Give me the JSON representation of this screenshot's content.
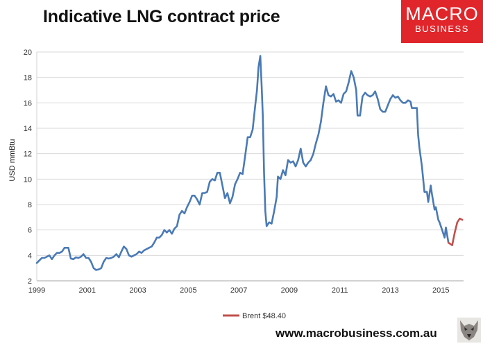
{
  "title": "Indicative LNG contract price",
  "logo": {
    "line1": "MACRO",
    "line2": "BUSINESS",
    "color": "#e1262b"
  },
  "footer": "www.macrobusiness.com.au",
  "chart_data": {
    "type": "line",
    "title": "Indicative LNG contract price",
    "xlabel": "",
    "ylabel": "USD mmBtu",
    "xlim": [
      1999,
      2015.9
    ],
    "ylim": [
      2,
      20
    ],
    "y_ticks": [
      2,
      4,
      6,
      8,
      10,
      12,
      14,
      16,
      18,
      20
    ],
    "x_ticks": [
      1999,
      2001,
      2003,
      2005,
      2007,
      2009,
      2011,
      2013,
      2015
    ],
    "legend_position": "bottom",
    "series": [
      {
        "name": "LNG contract price",
        "color": "#4a7ab5",
        "show_in_legend": false,
        "points": [
          [
            1999.0,
            3.4
          ],
          [
            1999.1,
            3.6
          ],
          [
            1999.2,
            3.8
          ],
          [
            1999.3,
            3.8
          ],
          [
            1999.4,
            3.9
          ],
          [
            1999.5,
            4.0
          ],
          [
            1999.6,
            3.7
          ],
          [
            1999.7,
            4.0
          ],
          [
            1999.8,
            4.2
          ],
          [
            1999.9,
            4.2
          ],
          [
            2000.0,
            4.3
          ],
          [
            2000.1,
            4.6
          ],
          [
            2000.25,
            4.6
          ],
          [
            2000.35,
            3.75
          ],
          [
            2000.45,
            3.7
          ],
          [
            2000.55,
            3.85
          ],
          [
            2000.65,
            3.8
          ],
          [
            2000.75,
            3.9
          ],
          [
            2000.85,
            4.1
          ],
          [
            2000.95,
            3.8
          ],
          [
            2001.05,
            3.8
          ],
          [
            2001.15,
            3.5
          ],
          [
            2001.25,
            3.0
          ],
          [
            2001.35,
            2.85
          ],
          [
            2001.45,
            2.9
          ],
          [
            2001.55,
            3.0
          ],
          [
            2001.65,
            3.5
          ],
          [
            2001.75,
            3.8
          ],
          [
            2001.85,
            3.75
          ],
          [
            2001.95,
            3.8
          ],
          [
            2002.05,
            3.9
          ],
          [
            2002.15,
            4.1
          ],
          [
            2002.25,
            3.85
          ],
          [
            2002.35,
            4.3
          ],
          [
            2002.45,
            4.7
          ],
          [
            2002.55,
            4.5
          ],
          [
            2002.65,
            4.0
          ],
          [
            2002.75,
            3.9
          ],
          [
            2002.85,
            4.0
          ],
          [
            2002.95,
            4.1
          ],
          [
            2003.05,
            4.3
          ],
          [
            2003.15,
            4.2
          ],
          [
            2003.25,
            4.4
          ],
          [
            2003.35,
            4.5
          ],
          [
            2003.45,
            4.6
          ],
          [
            2003.55,
            4.7
          ],
          [
            2003.65,
            5.0
          ],
          [
            2003.75,
            5.4
          ],
          [
            2003.85,
            5.4
          ],
          [
            2003.95,
            5.6
          ],
          [
            2004.05,
            6.0
          ],
          [
            2004.15,
            5.8
          ],
          [
            2004.25,
            6.0
          ],
          [
            2004.35,
            5.7
          ],
          [
            2004.45,
            6.1
          ],
          [
            2004.55,
            6.3
          ],
          [
            2004.65,
            7.2
          ],
          [
            2004.75,
            7.5
          ],
          [
            2004.85,
            7.3
          ],
          [
            2004.95,
            7.8
          ],
          [
            2005.05,
            8.2
          ],
          [
            2005.15,
            8.7
          ],
          [
            2005.25,
            8.7
          ],
          [
            2005.35,
            8.4
          ],
          [
            2005.45,
            8.0
          ],
          [
            2005.55,
            8.9
          ],
          [
            2005.65,
            8.9
          ],
          [
            2005.75,
            9.0
          ],
          [
            2005.85,
            9.8
          ],
          [
            2005.95,
            10.0
          ],
          [
            2006.05,
            9.9
          ],
          [
            2006.15,
            10.5
          ],
          [
            2006.25,
            10.5
          ],
          [
            2006.35,
            9.5
          ],
          [
            2006.45,
            8.5
          ],
          [
            2006.55,
            8.9
          ],
          [
            2006.65,
            8.1
          ],
          [
            2006.75,
            8.6
          ],
          [
            2006.85,
            9.6
          ],
          [
            2006.95,
            10.0
          ],
          [
            2007.05,
            10.5
          ],
          [
            2007.15,
            10.4
          ],
          [
            2007.25,
            11.8
          ],
          [
            2007.35,
            13.3
          ],
          [
            2007.45,
            13.3
          ],
          [
            2007.55,
            13.9
          ],
          [
            2007.65,
            15.8
          ],
          [
            2007.72,
            17.0
          ],
          [
            2007.78,
            18.8
          ],
          [
            2007.85,
            19.7
          ],
          [
            2007.9,
            17.5
          ],
          [
            2007.95,
            15.0
          ],
          [
            2008.0,
            10.5
          ],
          [
            2008.05,
            7.5
          ],
          [
            2008.1,
            6.3
          ],
          [
            2008.2,
            6.6
          ],
          [
            2008.3,
            6.5
          ],
          [
            2008.4,
            7.5
          ],
          [
            2008.5,
            8.6
          ],
          [
            2008.55,
            10.2
          ],
          [
            2008.65,
            10.0
          ],
          [
            2008.75,
            10.7
          ],
          [
            2008.85,
            10.3
          ],
          [
            2008.95,
            11.5
          ],
          [
            2009.05,
            11.3
          ],
          [
            2009.15,
            11.4
          ],
          [
            2009.25,
            11.0
          ],
          [
            2009.35,
            11.5
          ],
          [
            2009.45,
            12.4
          ],
          [
            2009.55,
            11.3
          ],
          [
            2009.65,
            11.0
          ],
          [
            2009.75,
            11.3
          ],
          [
            2009.85,
            11.5
          ],
          [
            2009.95,
            12.0
          ],
          [
            2010.05,
            12.8
          ],
          [
            2010.15,
            13.5
          ],
          [
            2010.25,
            14.5
          ],
          [
            2010.35,
            16.0
          ],
          [
            2010.45,
            17.3
          ],
          [
            2010.55,
            16.6
          ],
          [
            2010.65,
            16.5
          ],
          [
            2010.75,
            16.7
          ],
          [
            2010.85,
            16.1
          ],
          [
            2010.95,
            16.2
          ],
          [
            2011.05,
            16.0
          ],
          [
            2011.15,
            16.7
          ],
          [
            2011.25,
            16.9
          ],
          [
            2011.35,
            17.6
          ],
          [
            2011.45,
            18.5
          ],
          [
            2011.55,
            18.0
          ],
          [
            2011.65,
            17.0
          ],
          [
            2011.7,
            15.0
          ],
          [
            2011.8,
            15.0
          ],
          [
            2011.9,
            16.5
          ],
          [
            2012.0,
            16.8
          ],
          [
            2012.1,
            16.6
          ],
          [
            2012.2,
            16.5
          ],
          [
            2012.3,
            16.6
          ],
          [
            2012.4,
            16.9
          ],
          [
            2012.5,
            16.3
          ],
          [
            2012.6,
            15.5
          ],
          [
            2012.7,
            15.3
          ],
          [
            2012.8,
            15.3
          ],
          [
            2012.9,
            15.8
          ],
          [
            2013.0,
            16.3
          ],
          [
            2013.1,
            16.6
          ],
          [
            2013.2,
            16.4
          ],
          [
            2013.3,
            16.5
          ],
          [
            2013.4,
            16.2
          ],
          [
            2013.5,
            16.0
          ],
          [
            2013.6,
            16.0
          ],
          [
            2013.7,
            16.2
          ],
          [
            2013.8,
            16.1
          ],
          [
            2013.85,
            15.6
          ],
          [
            2013.95,
            15.6
          ],
          [
            2014.05,
            15.6
          ],
          [
            2014.1,
            13.5
          ],
          [
            2014.15,
            12.5
          ],
          [
            2014.25,
            11.0
          ],
          [
            2014.35,
            9.0
          ],
          [
            2014.45,
            9.0
          ],
          [
            2014.5,
            8.2
          ],
          [
            2014.6,
            9.5
          ],
          [
            2014.65,
            8.8
          ],
          [
            2014.75,
            7.6
          ],
          [
            2014.8,
            7.8
          ],
          [
            2014.9,
            6.8
          ],
          [
            2014.95,
            6.6
          ],
          [
            2015.05,
            6.0
          ],
          [
            2015.15,
            5.4
          ],
          [
            2015.2,
            6.2
          ],
          [
            2015.3,
            5.0
          ]
        ]
      },
      {
        "name": "Brent $48.40",
        "color": "#c0504d",
        "show_in_legend": true,
        "points": [
          [
            2015.3,
            5.0
          ],
          [
            2015.45,
            4.8
          ],
          [
            2015.55,
            5.8
          ],
          [
            2015.65,
            6.6
          ],
          [
            2015.75,
            6.9
          ],
          [
            2015.85,
            6.8
          ]
        ]
      }
    ]
  }
}
